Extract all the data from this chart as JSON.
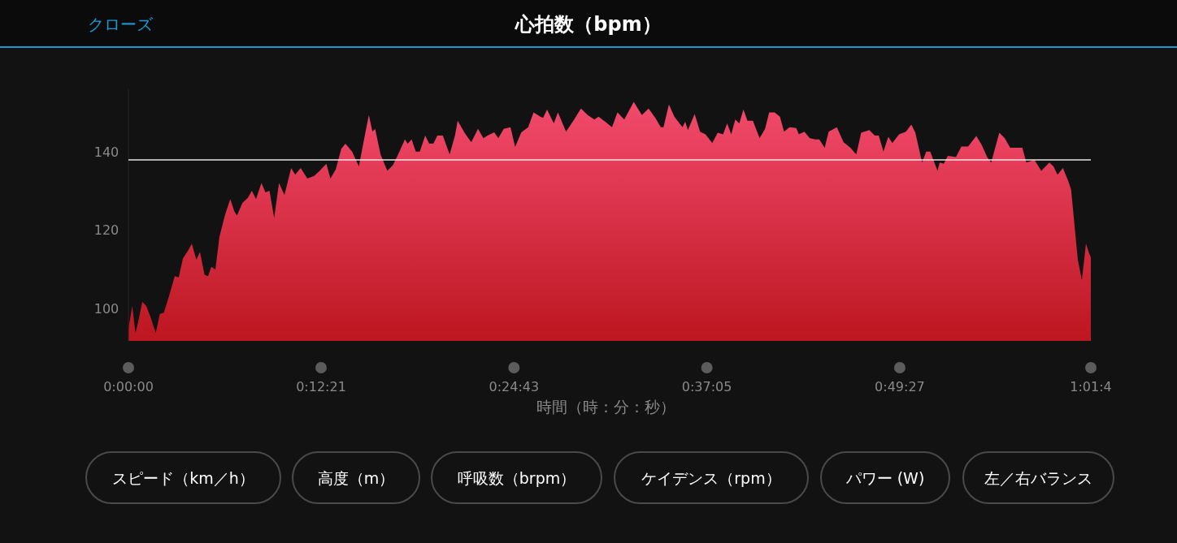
{
  "chart_data": {
    "type": "area",
    "title": "心拍数（bpm）",
    "xlabel": "時間（時：分：秒）",
    "annotations": [
      "クローズ",
      "スピード（km／h）",
      "高度（m）",
      "呼吸数（brpm）",
      "ケイデンス（rpm）",
      "パワー (W)",
      "左／右バランス"
    ],
    "x": [
      0,
      0.0041,
      0.0075,
      0.0104,
      0.0148,
      0.0191,
      0.0234,
      0.0292,
      0.0336,
      0.0379,
      0.0437,
      0.0495,
      0.0538,
      0.0582,
      0.0639,
      0.0677,
      0.0726,
      0.0764,
      0.0813,
      0.0851,
      0.0885,
      0.0929,
      0.0972,
      0.103,
      0.1088,
      0.1131,
      0.116,
      0.1218,
      0.1276,
      0.1319,
      0.1363,
      0.1421,
      0.1464,
      0.1507,
      0.1557,
      0.1609,
      0.1667,
      0.1739,
      0.1782,
      0.184,
      0.1912,
      0.1985,
      0.2043,
      0.2115,
      0.2158,
      0.2216,
      0.2274,
      0.2318,
      0.239,
      0.2462,
      0.252,
      0.2569,
      0.2607,
      0.2636,
      0.2694,
      0.2766,
      0.2824,
      0.2882,
      0.2954,
      0.2983,
      0.3026,
      0.307,
      0.3113,
      0.3171,
      0.3214,
      0.3258,
      0.3301,
      0.3359,
      0.3432,
      0.3489,
      0.3518,
      0.3591,
      0.3663,
      0.3735,
      0.3793,
      0.3837,
      0.3909,
      0.3952,
      0.401,
      0.4082,
      0.4132,
      0.4198,
      0.4271,
      0.4329,
      0.4401,
      0.443,
      0.4473,
      0.4545,
      0.4589,
      0.4676,
      0.4762,
      0.4835,
      0.4907,
      0.4979,
      0.5023,
      0.5095,
      0.5167,
      0.5225,
      0.5298,
      0.5399,
      0.5486,
      0.5558,
      0.563,
      0.5688,
      0.5717,
      0.5775,
      0.5833,
      0.592,
      0.5949,
      0.5978,
      0.605,
      0.6108,
      0.6166,
      0.6238,
      0.6296,
      0.6354,
      0.6397,
      0.6441,
      0.6484,
      0.6527,
      0.6571,
      0.6614,
      0.6672,
      0.6744,
      0.6802,
      0.6846,
      0.6904,
      0.6961,
      0.7005,
      0.7063,
      0.7135,
      0.7164,
      0.7222,
      0.728,
      0.7338,
      0.7381,
      0.7439,
      0.7482,
      0.7569,
      0.7641,
      0.7714,
      0.7777,
      0.7829,
      0.7916,
      0.7974,
      0.8017,
      0.8067,
      0.8119,
      0.8162,
      0.8234,
      0.8307,
      0.8365,
      0.8408,
      0.848,
      0.8524,
      0.8567,
      0.8645,
      0.8668,
      0.8712,
      0.8755,
      0.8842,
      0.89,
      0.8972,
      0.9059,
      0.9117,
      0.9175,
      0.9218,
      0.9305,
      0.9363,
      0.9421,
      0.9507,
      0.9551,
      0.9594,
      0.9681,
      0.9753,
      0.984,
      0.9884,
      0.9927,
      0.9985,
      1.0043,
      1.0072,
      1.0144,
      1.0187,
      1.0231,
      1.026,
      1.0283
    ],
    "series": [
      {
        "color": "#f24a6c",
        "values": [
          94.9,
          100.7,
          93.8,
          96.6,
          101.8,
          100.7,
          98.0,
          93.8,
          98.7,
          99.0,
          103.5,
          108.3,
          108.0,
          112.8,
          114.9,
          116.6,
          112.5,
          114.5,
          108.7,
          108.3,
          110.7,
          110.0,
          118.3,
          123.8,
          128.0,
          124.9,
          123.8,
          127.0,
          128.3,
          130.1,
          128.0,
          132.1,
          129.7,
          130.1,
          123.2,
          132.1,
          129.0,
          135.9,
          134.2,
          135.9,
          133.2,
          133.9,
          135.2,
          137.0,
          133.2,
          135.6,
          140.8,
          142.1,
          140.1,
          136.3,
          143.5,
          149.4,
          145.2,
          145.9,
          139.4,
          135.2,
          136.6,
          139.4,
          143.2,
          142.1,
          143.2,
          140.1,
          140.1,
          144.2,
          142.1,
          142.1,
          144.2,
          144.2,
          139.4,
          144.2,
          148.0,
          144.9,
          142.5,
          145.9,
          143.5,
          144.2,
          145.0,
          143.5,
          145.9,
          146.3,
          141.3,
          145.0,
          146.3,
          150.1,
          149.0,
          148.7,
          150.8,
          147.3,
          150.1,
          145.2,
          148.3,
          151.1,
          149.4,
          148.3,
          149.0,
          147.7,
          146.3,
          150.1,
          148.3,
          152.8,
          149.4,
          151.1,
          148.7,
          146.3,
          146.3,
          152.1,
          149.0,
          146.3,
          147.7,
          145.6,
          149.7,
          145.2,
          144.5,
          142.3,
          144.9,
          144.5,
          147.3,
          144.5,
          148.3,
          147.3,
          150.8,
          148.0,
          148.0,
          143.5,
          145.9,
          150.1,
          150.1,
          149.0,
          145.2,
          146.3,
          146.1,
          144.5,
          145.2,
          143.5,
          143.2,
          143.2,
          141.1,
          145.2,
          146.3,
          142.5,
          141.1,
          139.4,
          144.9,
          145.6,
          144.2,
          144.2,
          140.1,
          143.9,
          142.3,
          144.5,
          145.2,
          147.0,
          144.9,
          137.3,
          140.1,
          140.1,
          135.2,
          137.3,
          137.0,
          139.0,
          138.7,
          141.4,
          141.4,
          144.1,
          141.8,
          138.7,
          137.3,
          144.9,
          143.5,
          141.1,
          141.1,
          141.1,
          137.3,
          138.0,
          135.2,
          137.3,
          136.3,
          134.2,
          135.9,
          132.5,
          130.4,
          112.5,
          107.3,
          116.6,
          114.5,
          113.1
        ]
      }
    ],
    "xlim": [
      0,
      1.0283
    ],
    "xticks": [
      {
        "value": 0,
        "label": "0:00:00"
      },
      {
        "value": 0.20583,
        "label": "0:12:21"
      },
      {
        "value": 0.41194,
        "label": "0:24:43"
      },
      {
        "value": 0.61806,
        "label": "0:37:05"
      },
      {
        "value": 0.82417,
        "label": "0:49:27"
      },
      {
        "value": 1.0283,
        "label": "1:01:4"
      }
    ],
    "ylim": [
      91.8,
      156
    ],
    "yticks": [
      100,
      120,
      140
    ],
    "ref_lines": [
      {
        "axis": "y",
        "value": 138,
        "color": "#e6e6e6"
      }
    ],
    "grid": false
  }
}
